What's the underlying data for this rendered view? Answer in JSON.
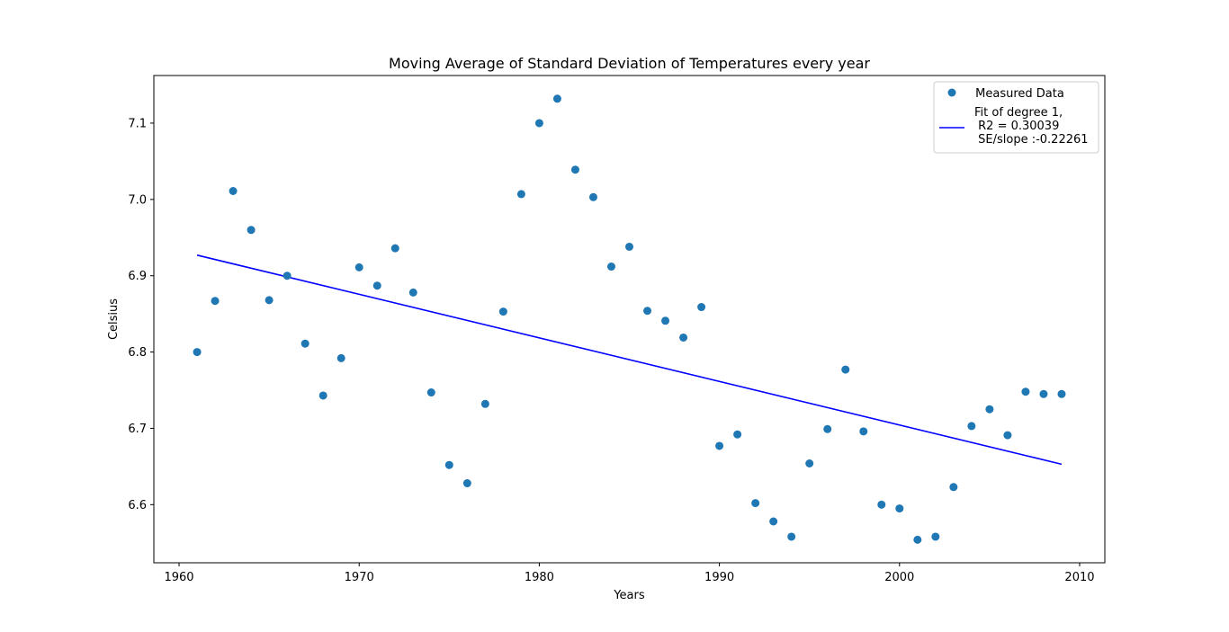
{
  "chart_data": {
    "type": "scatter",
    "title": "Moving Average of Standard Deviation of Temperatures every year",
    "xlabel": "Years",
    "ylabel": "Celsius",
    "xlim": [
      1958.6,
      2011.4
    ],
    "ylim": [
      6.5238,
      7.1624
    ],
    "xticks": [
      1960,
      1970,
      1980,
      1990,
      2000,
      2010
    ],
    "yticks": [
      6.6,
      6.7,
      6.8,
      6.9,
      7.0,
      7.1
    ],
    "xtick_labels": [
      "1960",
      "1970",
      "1980",
      "1990",
      "2000",
      "2010"
    ],
    "ytick_labels": [
      "6.6",
      "6.7",
      "6.8",
      "6.9",
      "7.0",
      "7.1"
    ],
    "legend_position": "top-right",
    "series": [
      {
        "name": " Measured Data",
        "kind": "scatter",
        "color": "#1f77b4",
        "x": [
          1961,
          1962,
          1963,
          1964,
          1965,
          1966,
          1967,
          1968,
          1969,
          1970,
          1971,
          1972,
          1973,
          1974,
          1975,
          1976,
          1977,
          1978,
          1979,
          1980,
          1981,
          1982,
          1983,
          1984,
          1985,
          1986,
          1987,
          1988,
          1989,
          1990,
          1991,
          1992,
          1993,
          1994,
          1995,
          1996,
          1997,
          1998,
          1999,
          2000,
          2001,
          2002,
          2003,
          2004,
          2005,
          2006,
          2007,
          2008,
          2009
        ],
        "y": [
          6.8,
          6.867,
          7.011,
          6.96,
          6.868,
          6.9,
          6.811,
          6.743,
          6.792,
          6.911,
          6.887,
          6.936,
          6.878,
          6.747,
          6.652,
          6.628,
          6.732,
          6.853,
          7.007,
          7.1,
          7.132,
          7.039,
          7.003,
          6.912,
          6.938,
          6.854,
          6.841,
          6.819,
          6.859,
          6.677,
          6.692,
          6.602,
          6.578,
          6.558,
          6.654,
          6.699,
          6.777,
          6.696,
          6.6,
          6.595,
          6.554,
          6.558,
          6.623,
          6.703,
          6.725,
          6.691,
          6.748,
          6.745,
          6.745
        ]
      },
      {
        "name": "Fit of degree 1,\n R2 = 0.30039\n SE/slope :-0.22261",
        "kind": "line",
        "color": "#0000ff",
        "x": [
          1961,
          2009
        ],
        "y": [
          6.927,
          6.653
        ]
      }
    ]
  }
}
